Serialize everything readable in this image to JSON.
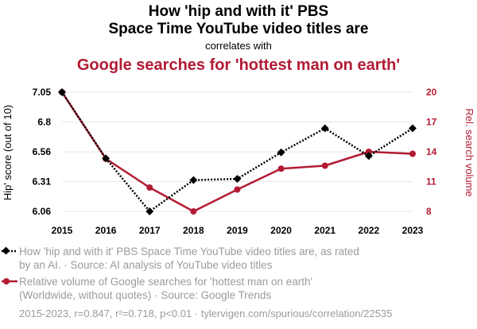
{
  "header": {
    "title_line1": "How 'hip and with it' PBS",
    "title_line2": "Space Time YouTube video titles are",
    "connector": "correlates with",
    "subtitle": "Google searches for 'hottest man on earth'"
  },
  "colors": {
    "series1": "#000000",
    "series2": "#b31b34",
    "grid": "#e8e8e8",
    "muted": "#9b9b9b"
  },
  "chart_data": {
    "type": "line",
    "title": "How 'hip and with it' PBS Space Time YouTube video titles are correlates with Google searches for 'hottest man on earth'",
    "x": [
      2015,
      2016,
      2017,
      2018,
      2019,
      2020,
      2021,
      2022,
      2023
    ],
    "x_tick_labels": [
      "2015",
      "2016",
      "2017",
      "2018",
      "2019",
      "2020",
      "2021",
      "2022",
      "2023"
    ],
    "ylabel_left": "Hip' score (out of 10)",
    "ylabel_right": "Rel. search volume",
    "ylim_left": [
      6.06,
      7.05
    ],
    "ylim_right": [
      8,
      20
    ],
    "yticks_left": [
      "7.05",
      "6.8",
      "6.56",
      "6.31",
      "6.06"
    ],
    "yticks_right": [
      "20",
      "17",
      "14",
      "11",
      "8"
    ],
    "grid": true,
    "series": [
      {
        "name": "How 'hip and with it' PBS Space Time YouTube video titles are, as rated by an AI. · Source: AI analysis of YouTube video titles",
        "axis": "left",
        "style": "dotted",
        "marker": "diamond",
        "values": [
          7.05,
          6.5,
          6.06,
          6.32,
          6.33,
          6.55,
          6.75,
          6.52,
          6.75
        ]
      },
      {
        "name": "Relative volume of Google searches for 'hottest man on earth' (Worldwide, without quotes) · Source: Google Trends",
        "axis": "right",
        "style": "solid",
        "marker": "circle",
        "values": [
          20,
          13.3,
          10.4,
          8,
          10.2,
          12.3,
          12.6,
          14,
          13.8
        ]
      }
    ]
  },
  "legend": {
    "series1_line1": "How 'hip and with it' PBS Space Time YouTube video titles are, as rated",
    "series1_line2": "by an AI. · Source: AI analysis of YouTube video titles",
    "series2_line1": "Relative volume of Google searches for 'hottest man on earth'",
    "series2_line2": "(Worldwide, without quotes) · Source: Google Trends"
  },
  "footer": {
    "stats": "2015-2023, r=0.847, r²=0.718, p<0.01 · tylervigen.com/spurious/correlation/22535"
  }
}
